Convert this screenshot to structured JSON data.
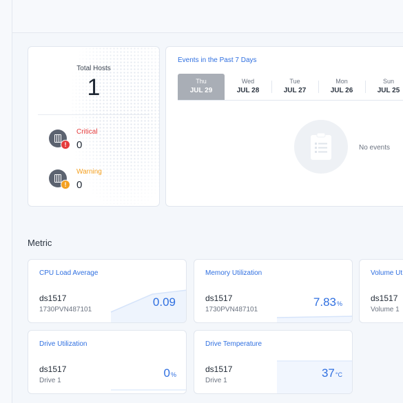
{
  "hosts": {
    "total_label": "Total Hosts",
    "total_value": "1",
    "critical": {
      "label": "Critical",
      "count": "0",
      "color": "#e53b3b",
      "icon": "server-critical-icon"
    },
    "warning": {
      "label": "Warning",
      "count": "0",
      "color": "#f4a020",
      "icon": "server-warning-icon"
    }
  },
  "events": {
    "title": "Events in the Past 7 Days",
    "days": [
      {
        "dow": "Thu",
        "date": "JUL 29"
      },
      {
        "dow": "Wed",
        "date": "JUL 28"
      },
      {
        "dow": "Tue",
        "date": "JUL 27"
      },
      {
        "dow": "Mon",
        "date": "JUL 26"
      },
      {
        "dow": "Sun",
        "date": "JUL 25"
      }
    ],
    "active_day": 0,
    "empty_text": "No events",
    "empty_icon": "clipboard-list-icon"
  },
  "metric": {
    "heading": "Metric",
    "cards": [
      {
        "title": "CPU Load Average",
        "host": "ds1517",
        "sub": "1730PVN487101",
        "value": "0.09",
        "unit": ""
      },
      {
        "title": "Memory Utilization",
        "host": "ds1517",
        "sub": "1730PVN487101",
        "value": "7.83",
        "unit": "%"
      },
      {
        "title": "Volume Ut",
        "host": "ds1517",
        "sub": "Volume 1",
        "value": "",
        "unit": ""
      },
      {
        "title": "Drive Utilization",
        "host": "ds1517",
        "sub": "Drive 1",
        "value": "0",
        "unit": "%"
      },
      {
        "title": "Drive Temperature",
        "host": "ds1517",
        "sub": "Drive 1",
        "value": "37",
        "unit": "°C"
      }
    ]
  },
  "colors": {
    "accent": "#2f6fe0",
    "critical": "#e53b3b",
    "warning": "#f4a020",
    "tab_active": "#a9aeb6"
  }
}
